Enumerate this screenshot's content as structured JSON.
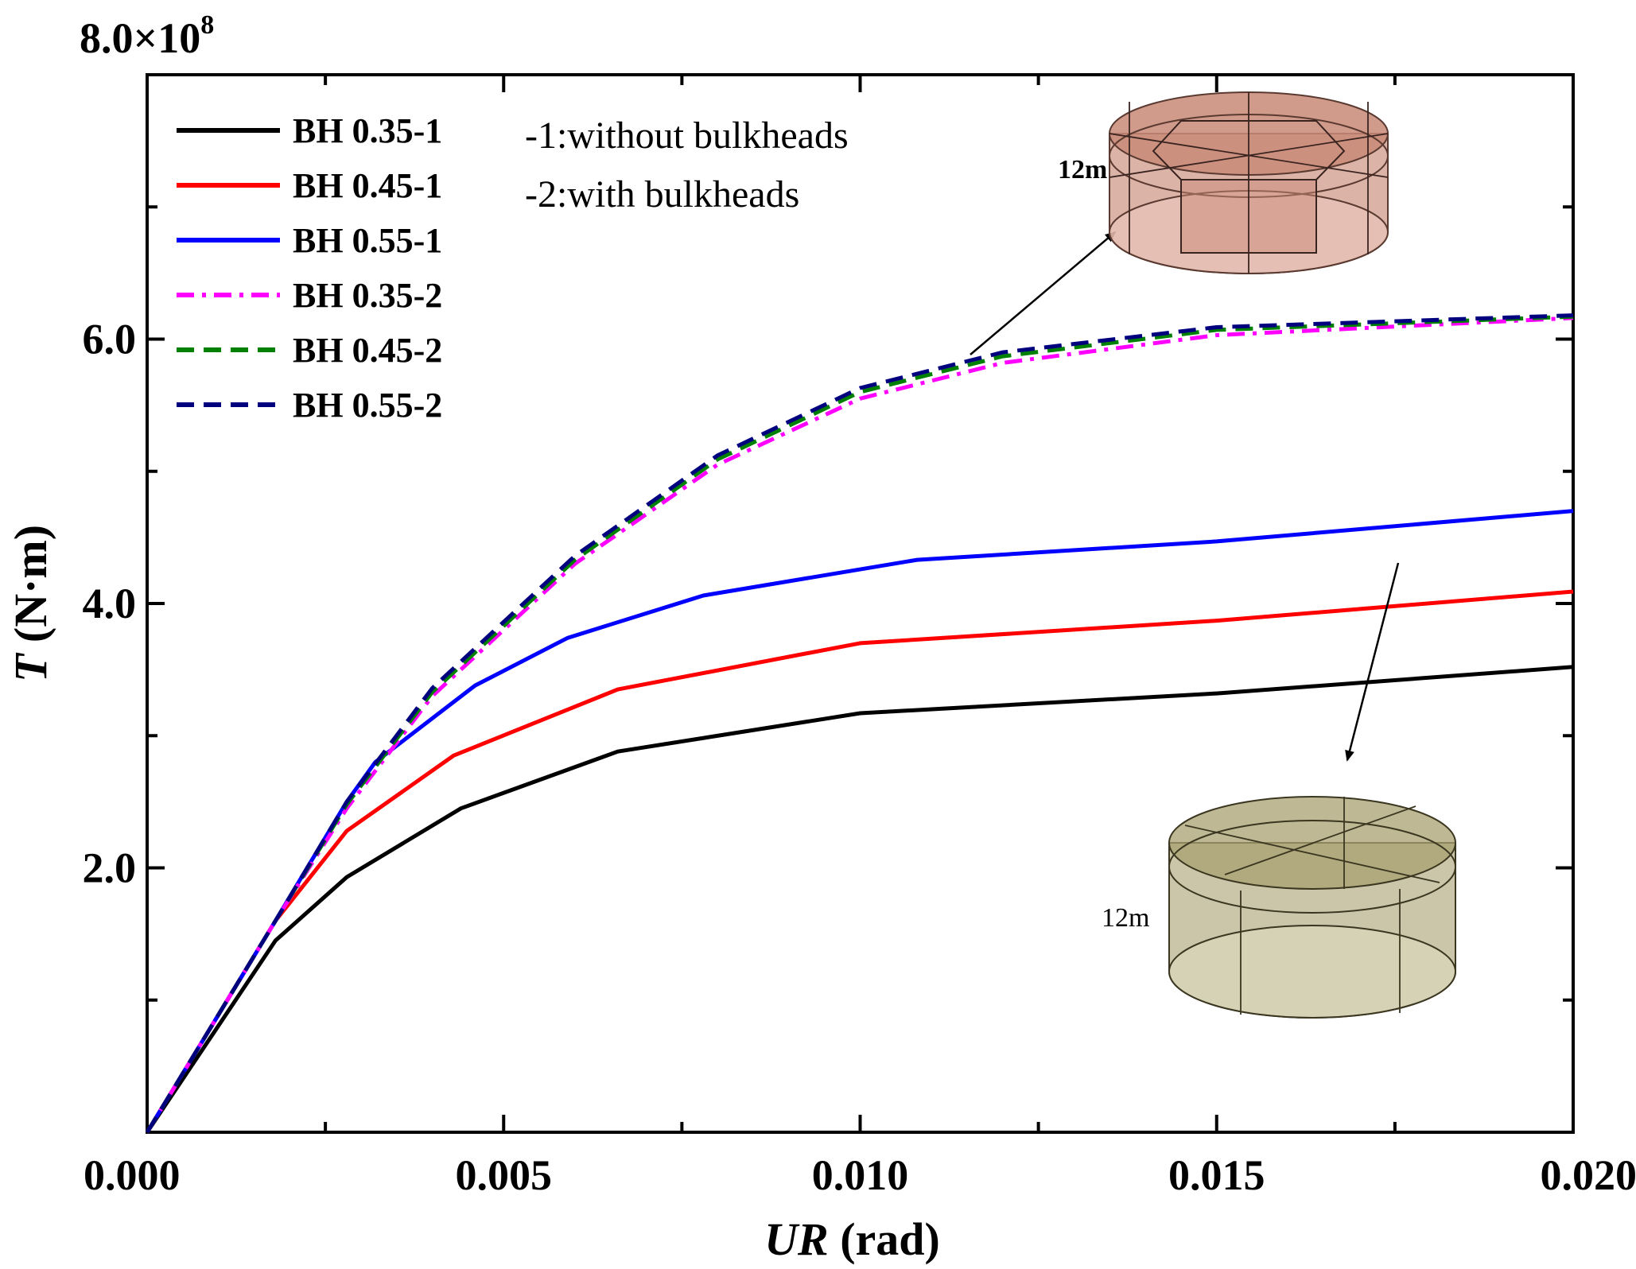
{
  "chart_data": {
    "type": "line",
    "title": "",
    "xlabel_italic": "UR",
    "xlabel_rest": " (rad)",
    "ylabel_italic": "T",
    "ylabel_rest": " (N·m)",
    "y_scale_label": "8.0×10",
    "y_scale_exp": "8",
    "xlim": [
      0,
      0.02
    ],
    "ylim": [
      0,
      8.0
    ],
    "x_ticks": [
      {
        "value": 0.0,
        "label": "0.000"
      },
      {
        "value": 0.005,
        "label": "0.005"
      },
      {
        "value": 0.01,
        "label": "0.010"
      },
      {
        "value": 0.015,
        "label": "0.015"
      },
      {
        "value": 0.02,
        "label": "0.020"
      }
    ],
    "x_minor_ticks": [
      0.0025,
      0.0075,
      0.0125,
      0.0175
    ],
    "y_ticks": [
      {
        "value": 2.0,
        "label": "2.0"
      },
      {
        "value": 4.0,
        "label": "4.0"
      },
      {
        "value": 6.0,
        "label": "6.0"
      }
    ],
    "y_minor_ticks": [
      1.0,
      3.0,
      5.0,
      7.0
    ],
    "series": [
      {
        "name": "BH 0.35-1",
        "color": "#000000",
        "dash": "solid",
        "x": [
          0,
          0.0018,
          0.0028,
          0.0044,
          0.0066,
          0.01,
          0.015,
          0.02
        ],
        "y": [
          0,
          1.45,
          1.93,
          2.45,
          2.88,
          3.17,
          3.32,
          3.52
        ]
      },
      {
        "name": "BH 0.45-1",
        "color": "#ff0000",
        "dash": "solid",
        "x": [
          0,
          0.0018,
          0.0028,
          0.0043,
          0.0066,
          0.01,
          0.015,
          0.02
        ],
        "y": [
          0,
          1.6,
          2.28,
          2.85,
          3.35,
          3.7,
          3.87,
          4.09
        ]
      },
      {
        "name": "BH 0.55-1",
        "color": "#0000ff",
        "dash": "solid",
        "x": [
          0,
          0.0018,
          0.0028,
          0.0032,
          0.0046,
          0.0059,
          0.0078,
          0.0108,
          0.015,
          0.02
        ],
        "y": [
          0,
          1.6,
          2.5,
          2.8,
          3.38,
          3.74,
          4.06,
          4.33,
          4.47,
          4.7
        ]
      },
      {
        "name": "BH 0.35-2",
        "color": "#ff00ff",
        "dash": "dashdot",
        "x": [
          0,
          0.0018,
          0.0028,
          0.004,
          0.006,
          0.008,
          0.01,
          0.012,
          0.015,
          0.02
        ],
        "y": [
          0,
          1.6,
          2.45,
          3.3,
          4.3,
          5.05,
          5.55,
          5.82,
          6.03,
          6.16
        ]
      },
      {
        "name": "BH 0.45-2",
        "color": "#008000",
        "dash": "dashed",
        "x": [
          0,
          0.0018,
          0.0028,
          0.004,
          0.006,
          0.008,
          0.01,
          0.012,
          0.015,
          0.02
        ],
        "y": [
          0,
          1.6,
          2.48,
          3.33,
          4.33,
          5.09,
          5.6,
          5.87,
          6.07,
          6.17
        ]
      },
      {
        "name": "BH 0.55-2",
        "color": "#00007f",
        "dash": "dashed",
        "x": [
          0,
          0.0018,
          0.0028,
          0.004,
          0.006,
          0.008,
          0.01,
          0.012,
          0.015,
          0.02
        ],
        "y": [
          0,
          1.6,
          2.5,
          3.36,
          4.36,
          5.12,
          5.63,
          5.9,
          6.09,
          6.18
        ]
      }
    ],
    "legend_position": "top-left",
    "annotations": {
      "note_1": "-1:without bulkheads",
      "note_2": "-2:with bulkheads",
      "dim_top": "12m",
      "dim_bottom": "12m"
    },
    "colors": {
      "tank_top_fill": "#c98a78",
      "tank_top_light": "#e8c4b8",
      "tank_bottom_fill": "#a8a070",
      "tank_bottom_light": "#d8d4b8"
    }
  }
}
